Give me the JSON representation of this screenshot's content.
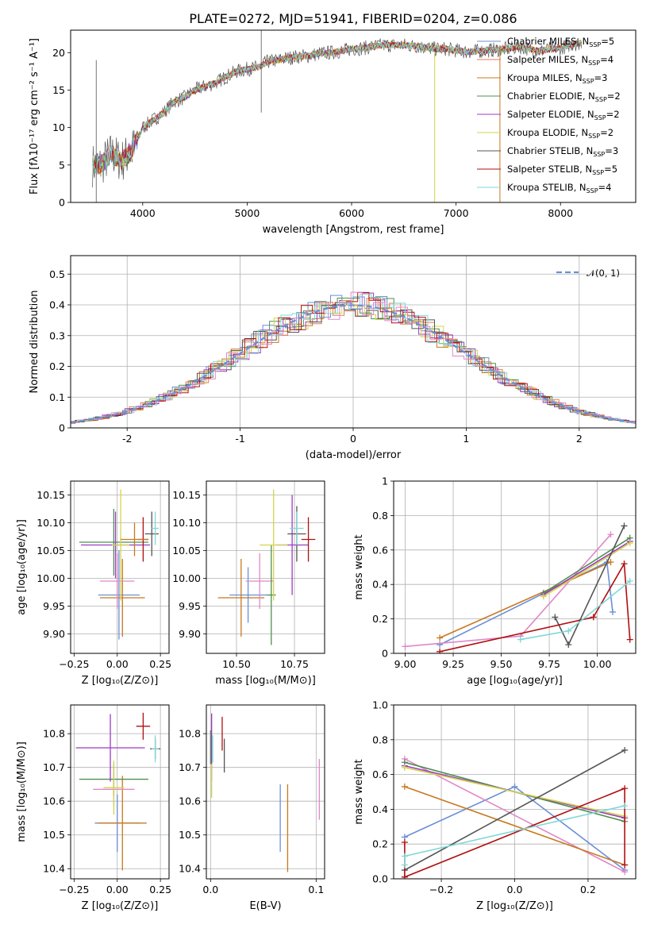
{
  "page": {
    "title": "PLATE=0272, MJD=51941, FIBERID=0204, z=0.086"
  },
  "chart_data": [
    {
      "id": "spectrum",
      "type": "line",
      "xlabel": "wavelength [Angstrom, rest frame]",
      "ylabel": "Flux [fλ10⁻¹⁷ erg cm⁻² s⁻¹ A⁻¹]",
      "xlim": [
        3310,
        8720
      ],
      "ylim": [
        0,
        23
      ],
      "xticks": [
        4000,
        5000,
        6000,
        7000,
        8000
      ],
      "yticks": [
        0,
        5,
        10,
        15,
        20
      ],
      "grid": false,
      "legend_position": "top-right",
      "data_shape": [
        [
          3520,
          5
        ],
        [
          3600,
          5
        ],
        [
          3700,
          6.5
        ],
        [
          3800,
          5.5
        ],
        [
          3900,
          7
        ],
        [
          4000,
          10
        ],
        [
          4100,
          11
        ],
        [
          4200,
          12
        ],
        [
          4300,
          13.5
        ],
        [
          4400,
          14
        ],
        [
          4500,
          15
        ],
        [
          4600,
          15.5
        ],
        [
          4700,
          16
        ],
        [
          4800,
          16.8
        ],
        [
          4900,
          17.5
        ],
        [
          5000,
          17.8
        ],
        [
          5100,
          18
        ],
        [
          5200,
          18.8
        ],
        [
          5300,
          19
        ],
        [
          5400,
          19.3
        ],
        [
          5500,
          19.5
        ],
        [
          5600,
          19.6
        ],
        [
          5700,
          19.9
        ],
        [
          5800,
          20
        ],
        [
          5900,
          20.2
        ],
        [
          6000,
          20.5
        ],
        [
          6100,
          20.6
        ],
        [
          6200,
          20.8
        ],
        [
          6300,
          21
        ],
        [
          6400,
          21
        ],
        [
          6500,
          21
        ],
        [
          6600,
          20.9
        ],
        [
          6700,
          20.7
        ],
        [
          6800,
          20.5
        ],
        [
          6900,
          20.5
        ],
        [
          7000,
          20.3
        ],
        [
          7100,
          20.1
        ],
        [
          7200,
          20.2
        ],
        [
          7300,
          20.3
        ],
        [
          7400,
          20.4
        ],
        [
          7500,
          20.5
        ],
        [
          7600,
          20.8
        ],
        [
          7700,
          20.5
        ],
        [
          7800,
          20.2
        ],
        [
          7900,
          20.5
        ],
        [
          8000,
          20.6
        ],
        [
          8100,
          21.1
        ],
        [
          8200,
          21.3
        ]
      ],
      "series": [
        {
          "name": "Chabrier MILES, N_SSP=5",
          "label_main": "Chabrier MILES, N",
          "label_sub": "SSP",
          "label_end": "=5",
          "color": "#6a8fd6"
        },
        {
          "name": "Salpeter MILES, N_SSP=4",
          "label_main": "Salpeter MILES, N",
          "label_sub": "SSP",
          "label_end": "=4",
          "color": "#e07b5a"
        },
        {
          "name": "Kroupa MILES, N_SSP=3",
          "label_main": "Kroupa MILES, N",
          "label_sub": "SSP",
          "label_end": "=3",
          "color": "#c8781f"
        },
        {
          "name": "Chabrier ELODIE, N_SSP=2",
          "label_main": "Chabrier ELODIE, N",
          "label_sub": "SSP",
          "label_end": "=2",
          "color": "#4f8f4f"
        },
        {
          "name": "Salpeter ELODIE, N_SSP=2",
          "label_main": "Salpeter ELODIE, N",
          "label_sub": "SSP",
          "label_end": "=2",
          "color": "#9b3bc4"
        },
        {
          "name": "Kroupa ELODIE, N_SSP=2",
          "label_main": "Kroupa ELODIE, N",
          "label_sub": "SSP",
          "label_end": "=2",
          "color": "#d4d44a"
        },
        {
          "name": "Chabrier STELIB, N_SSP=3",
          "label_main": "Chabrier STELIB, N",
          "label_sub": "SSP",
          "label_end": "=3",
          "color": "#555555"
        },
        {
          "name": "Salpeter STELIB, N_SSP=5",
          "label_main": "Salpeter STELIB, N",
          "label_sub": "SSP",
          "label_end": "=5",
          "color": "#b01010"
        },
        {
          "name": "Kroupa STELIB, N_SSP=4",
          "label_main": "Kroupa STELIB, N",
          "label_sub": "SSP",
          "label_end": "=4",
          "color": "#7fd8d8"
        }
      ]
    },
    {
      "id": "residuals",
      "type": "line",
      "xlabel": "(data-model)/error",
      "ylabel": "Normed distribution",
      "xlim": [
        -2.5,
        2.5
      ],
      "ylim": [
        0,
        0.56
      ],
      "xticks": [
        -2,
        -1,
        0,
        1,
        2
      ],
      "yticks": [
        0.0,
        0.1,
        0.2,
        0.3,
        0.4,
        0.5
      ],
      "grid": true,
      "legend_position": "top-right",
      "legend": "𝒩(0, 1)",
      "hist_colors": [
        "#6a8fd6",
        "#e07b5a",
        "#c8781f",
        "#4f8f4f",
        "#9b3bc4",
        "#d4d44a",
        "#555555",
        "#b01010",
        "#7fd8d8",
        "#e088c8"
      ]
    },
    {
      "id": "z-age",
      "type": "scatter",
      "xlabel": "Z [log₁₀(Z/Z⊙)]",
      "ylabel": "age  [log₁₀(age/yr)]",
      "xlim": [
        -0.27,
        0.3
      ],
      "ylim": [
        9.865,
        10.175
      ],
      "xticks": [
        -0.25,
        0.0,
        0.25
      ],
      "xticklabels": [
        "−0.25",
        "0.00",
        "0.25"
      ],
      "yticks": [
        9.9,
        9.95,
        10.0,
        10.05,
        10.1,
        10.15
      ],
      "yticklabels": [
        "9.90",
        "9.95",
        "10.00",
        "10.05",
        "10.10",
        "10.15"
      ],
      "grid": true,
      "points": [
        {
          "x": 0.01,
          "y": 9.97,
          "xerr": 0.12,
          "yerr": 0.08,
          "color": "#6a8fd6"
        },
        {
          "x": 0.03,
          "y": 9.965,
          "xerr": 0.13,
          "yerr": 0.07,
          "color": "#c8781f"
        },
        {
          "x": 0.0,
          "y": 9.995,
          "xerr": 0.1,
          "yerr": 0.05,
          "color": "#e088c8"
        },
        {
          "x": -0.02,
          "y": 10.065,
          "xerr": 0.2,
          "yerr": 0.06,
          "color": "#4f8f4f"
        },
        {
          "x": -0.01,
          "y": 10.06,
          "xerr": 0.2,
          "yerr": 0.06,
          "color": "#9b3bc4"
        },
        {
          "x": 0.02,
          "y": 10.06,
          "xerr": 0.05,
          "yerr": 0.1,
          "color": "#d4d44a"
        },
        {
          "x": 0.2,
          "y": 10.08,
          "xerr": 0.04,
          "yerr": 0.04,
          "color": "#555555"
        },
        {
          "x": 0.15,
          "y": 10.07,
          "xerr": 0.03,
          "yerr": 0.04,
          "color": "#b01010"
        },
        {
          "x": 0.22,
          "y": 10.09,
          "xerr": 0.02,
          "yerr": 0.03,
          "color": "#7fd8d8"
        },
        {
          "x": 0.1,
          "y": 10.07,
          "xerr": 0.08,
          "yerr": 0.03,
          "color": "#c8781f"
        }
      ]
    },
    {
      "id": "mass-age",
      "type": "scatter",
      "xlabel": "mass [log₁₀(M/M⊙)]",
      "ylabel": "",
      "xlim": [
        10.37,
        10.88
      ],
      "ylim": [
        9.865,
        10.175
      ],
      "xticks": [
        10.5,
        10.75
      ],
      "xticklabels": [
        "10.50",
        "10.75"
      ],
      "yticks": [
        9.9,
        9.95,
        10.0,
        10.05,
        10.1,
        10.15
      ],
      "yticklabels": [
        "9.90",
        "9.95",
        "10.00",
        "10.05",
        "10.10",
        "10.15"
      ],
      "grid": true,
      "points": [
        {
          "x": 10.55,
          "y": 9.97,
          "xerr": 0.08,
          "yerr": 0.05,
          "color": "#6a8fd6"
        },
        {
          "x": 10.52,
          "y": 9.965,
          "xerr": 0.1,
          "yerr": 0.07,
          "color": "#c8781f"
        },
        {
          "x": 10.6,
          "y": 9.995,
          "xerr": 0.06,
          "yerr": 0.05,
          "color": "#e088c8"
        },
        {
          "x": 10.65,
          "y": 9.97,
          "xerr": 0.02,
          "yerr": 0.09,
          "color": "#4f8f4f"
        },
        {
          "x": 10.74,
          "y": 10.06,
          "xerr": 0.07,
          "yerr": 0.09,
          "color": "#9b3bc4"
        },
        {
          "x": 10.66,
          "y": 10.06,
          "xerr": 0.06,
          "yerr": 0.1,
          "color": "#d4d44a"
        },
        {
          "x": 10.76,
          "y": 10.08,
          "xerr": 0.04,
          "yerr": 0.05,
          "color": "#555555"
        },
        {
          "x": 10.81,
          "y": 10.07,
          "xerr": 0.03,
          "yerr": 0.04,
          "color": "#b01010"
        },
        {
          "x": 10.76,
          "y": 10.09,
          "xerr": 0.03,
          "yerr": 0.03,
          "color": "#7fd8d8"
        }
      ]
    },
    {
      "id": "age-weight",
      "type": "line",
      "xlabel": "age  [log₁₀(age/yr)]",
      "ylabel": "mass weight",
      "xlim": [
        8.94,
        10.2
      ],
      "ylim": [
        0,
        1.0
      ],
      "xticks": [
        9.0,
        9.25,
        9.5,
        9.75,
        10.0
      ],
      "xticklabels": [
        "9.00",
        "9.25",
        "9.50",
        "9.75",
        "10.00"
      ],
      "yticks": [
        0.0,
        0.2,
        0.4,
        0.6,
        0.8,
        1.0
      ],
      "grid": true,
      "series": [
        {
          "color": "#6a8fd6",
          "points": [
            [
              9.18,
              0.05
            ],
            [
              10.05,
              0.53
            ],
            [
              10.08,
              0.24
            ]
          ]
        },
        {
          "color": "#e088c8",
          "points": [
            [
              9.0,
              0.04
            ],
            [
              9.6,
              0.1
            ],
            [
              10.07,
              0.69
            ]
          ]
        },
        {
          "color": "#c8781f",
          "points": [
            [
              9.18,
              0.09
            ],
            [
              10.07,
              0.53
            ]
          ]
        },
        {
          "color": "#4f8f4f",
          "points": [
            [
              9.72,
              0.35
            ],
            [
              10.17,
              0.67
            ]
          ]
        },
        {
          "color": "#9b3bc4",
          "points": [
            [
              9.72,
              0.34
            ],
            [
              10.17,
              0.65
            ]
          ]
        },
        {
          "color": "#d4d44a",
          "points": [
            [
              9.72,
              0.33
            ],
            [
              10.17,
              0.64
            ]
          ]
        },
        {
          "color": "#555555",
          "points": [
            [
              9.78,
              0.21
            ],
            [
              9.85,
              0.05
            ],
            [
              10.14,
              0.74
            ]
          ]
        },
        {
          "color": "#b01010",
          "points": [
            [
              9.18,
              0.01
            ],
            [
              9.98,
              0.21
            ],
            [
              10.14,
              0.52
            ],
            [
              10.17,
              0.08
            ]
          ]
        },
        {
          "color": "#7fd8d8",
          "points": [
            [
              9.6,
              0.08
            ],
            [
              9.85,
              0.13
            ],
            [
              10.17,
              0.42
            ]
          ]
        }
      ]
    },
    {
      "id": "z-mass",
      "type": "scatter",
      "xlabel": "Z [log₁₀(Z/Z⊙)]",
      "ylabel": "mass [log₁₀(M/M⊙)]",
      "xlim": [
        -0.27,
        0.3
      ],
      "ylim": [
        10.37,
        10.885
      ],
      "xticks": [
        -0.25,
        0.0,
        0.25
      ],
      "xticklabels": [
        "−0.25",
        "0.00",
        "0.25"
      ],
      "yticks": [
        10.4,
        10.5,
        10.6,
        10.7,
        10.8
      ],
      "yticklabels": [
        "10.4",
        "10.5",
        "10.6",
        "10.7",
        "10.8"
      ],
      "grid": true,
      "points": [
        {
          "x": 0.0,
          "y": 10.535,
          "xerr": 0.13,
          "yerr": 0.085,
          "color": "#6a8fd6"
        },
        {
          "x": 0.03,
          "y": 10.535,
          "xerr": 0.14,
          "yerr": 0.14,
          "color": "#c8781f"
        },
        {
          "x": -0.02,
          "y": 10.635,
          "xerr": 0.12,
          "yerr": 0.05,
          "color": "#e088c8"
        },
        {
          "x": -0.02,
          "y": 10.665,
          "xerr": 0.2,
          "yerr": 0.05,
          "color": "#4f8f4f"
        },
        {
          "x": -0.04,
          "y": 10.758,
          "xerr": 0.2,
          "yerr": 0.1,
          "color": "#9b3bc4"
        },
        {
          "x": -0.02,
          "y": 10.64,
          "xerr": 0.06,
          "yerr": 0.08,
          "color": "#d4d44a"
        },
        {
          "x": 0.22,
          "y": 10.755,
          "xerr": 0.03,
          "yerr": 0.03,
          "color": "#555555"
        },
        {
          "x": 0.15,
          "y": 10.822,
          "xerr": 0.04,
          "yerr": 0.04,
          "color": "#b01010"
        },
        {
          "x": 0.22,
          "y": 10.755,
          "xerr": 0.02,
          "yerr": 0.04,
          "color": "#7fd8d8"
        }
      ]
    },
    {
      "id": "ebv-mass",
      "type": "scatter",
      "xlabel": "E(B-V)",
      "ylabel": "",
      "xlim": [
        -0.004,
        0.108
      ],
      "ylim": [
        10.37,
        10.885
      ],
      "xticks": [
        0.0,
        0.1
      ],
      "xticklabels": [
        "0.0",
        "0.1"
      ],
      "yticks": [
        10.4,
        10.5,
        10.6,
        10.7,
        10.8
      ],
      "yticklabels": [
        "10.4",
        "10.5",
        "10.6",
        "10.7",
        "10.8"
      ],
      "grid": true,
      "points": [
        {
          "x": 0.066,
          "y": 10.55,
          "xerr": 0,
          "yerr": 0.1,
          "color": "#6a8fd6"
        },
        {
          "x": 0.073,
          "y": 10.52,
          "xerr": 0,
          "yerr": 0.13,
          "color": "#c8781f"
        },
        {
          "x": 0.103,
          "y": 10.635,
          "xerr": 0,
          "yerr": 0.09,
          "color": "#e088c8"
        },
        {
          "x": 0.0,
          "y": 10.76,
          "xerr": 0,
          "yerr": 0.05,
          "color": "#4f8f4f"
        },
        {
          "x": 0.001,
          "y": 10.76,
          "xerr": 0,
          "yerr": 0.1,
          "color": "#9b3bc4"
        },
        {
          "x": 0.001,
          "y": 10.66,
          "xerr": 0,
          "yerr": 0.05,
          "color": "#d4d44a"
        },
        {
          "x": 0.013,
          "y": 10.735,
          "xerr": 0,
          "yerr": 0.05,
          "color": "#555555"
        },
        {
          "x": 0.011,
          "y": 10.8,
          "xerr": 0,
          "yerr": 0.05,
          "color": "#b01010"
        },
        {
          "x": 0.002,
          "y": 10.755,
          "xerr": 0,
          "yerr": 0.04,
          "color": "#7fd8d8"
        }
      ]
    },
    {
      "id": "z-weight",
      "type": "line",
      "xlabel": "Z [log₁₀(Z/Z⊙)]",
      "ylabel": "mass weight",
      "xlim": [
        -0.33,
        0.33
      ],
      "ylim": [
        0,
        1.0
      ],
      "xticks": [
        -0.2,
        0.0,
        0.2
      ],
      "xticklabels": [
        "−0.2",
        "0.0",
        "0.2"
      ],
      "yticks": [
        0.0,
        0.2,
        0.4,
        0.6,
        0.8,
        1.0
      ],
      "yticklabels": [
        "0.0",
        "0.2",
        "0.4",
        "0.6",
        "0.8",
        "1.0"
      ],
      "grid": true,
      "series": [
        {
          "color": "#6a8fd6",
          "points": [
            [
              -0.3,
              0.24
            ],
            [
              0.0,
              0.53
            ],
            [
              0.3,
              0.05
            ]
          ]
        },
        {
          "color": "#e088c8",
          "points": [
            [
              -0.3,
              0.69
            ],
            [
              0.3,
              0.04
            ]
          ]
        },
        {
          "color": "#c8781f",
          "points": [
            [
              -0.3,
              0.53
            ],
            [
              0.3,
              0.08
            ]
          ]
        },
        {
          "color": "#4f8f4f",
          "points": [
            [
              -0.3,
              0.67
            ],
            [
              0.3,
              0.33
            ]
          ]
        },
        {
          "color": "#9b3bc4",
          "points": [
            [
              -0.3,
              0.65
            ],
            [
              0.3,
              0.35
            ]
          ]
        },
        {
          "color": "#d4d44a",
          "points": [
            [
              -0.3,
              0.64
            ],
            [
              0.3,
              0.36
            ]
          ]
        },
        {
          "color": "#555555",
          "points": [
            [
              -0.3,
              0.05
            ],
            [
              0.3,
              0.74
            ]
          ]
        },
        {
          "color": "#b01010",
          "points": [
            [
              -0.3,
              0.21
            ],
            [
              -0.3,
              0.01
            ],
            [
              0.3,
              0.52
            ],
            [
              0.3,
              0.08
            ]
          ]
        },
        {
          "color": "#7fd8d8",
          "points": [
            [
              -0.3,
              0.08
            ],
            [
              -0.3,
              0.13
            ],
            [
              0.3,
              0.42
            ]
          ]
        }
      ]
    }
  ]
}
